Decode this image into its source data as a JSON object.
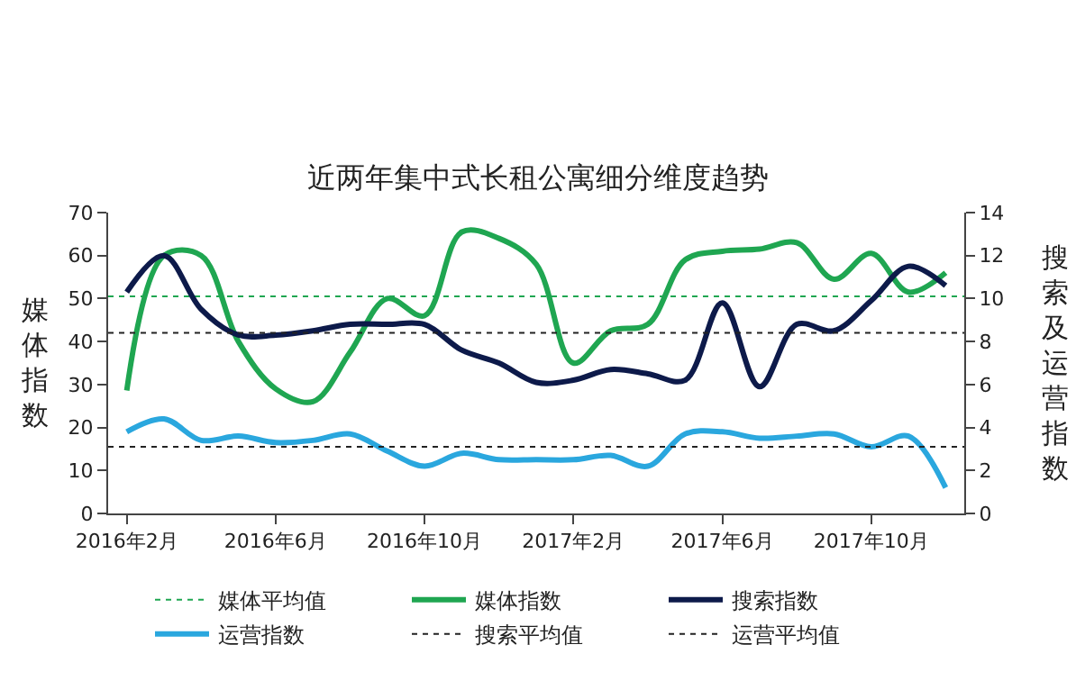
{
  "chart_data": {
    "type": "line",
    "title": "近两年集中式长租公寓细分维度趋势",
    "ylabel": "媒体指数",
    "y2label": "搜索及运营指数",
    "categories": [
      "2016年2月",
      null,
      null,
      null,
      "2016年6月",
      null,
      null,
      null,
      "2016年10月",
      null,
      null,
      null,
      "2017年2月",
      null,
      null,
      null,
      "2017年6月",
      null,
      null,
      null,
      "2017年10月",
      null,
      null
    ],
    "series": [
      {
        "name": "媒体指数",
        "color": "#1fa651",
        "values": [
          28.6,
          60,
          60,
          40,
          29,
          26,
          37.5,
          50,
          46,
          65.5,
          64,
          58,
          35,
          42.5,
          44,
          59,
          61,
          61.5,
          63,
          54.5,
          60.5,
          51.5,
          56
        ]
      },
      {
        "name": "搜索指数",
        "color": "#0d1a4a",
        "axis": "y2",
        "values": [
          10.3,
          12,
          9.5,
          8.3,
          8.3,
          8.5,
          8.8,
          8.8,
          8.8,
          7.6,
          7,
          6.1,
          6.2,
          6.7,
          6.5,
          6.2,
          9.8,
          5.9,
          8.8,
          8.5,
          9.9,
          11.5,
          10.6
        ]
      },
      {
        "name": "运营指数",
        "color": "#2aa7de",
        "axis": "y2",
        "values": [
          3.8,
          4.4,
          3.4,
          3.6,
          3.3,
          3.4,
          3.7,
          2.9,
          2.2,
          2.8,
          2.5,
          2.5,
          2.5,
          2.7,
          2.2,
          3.7,
          3.8,
          3.5,
          3.6,
          3.7,
          3.1,
          3.6,
          1.2
        ]
      }
    ],
    "ref_lines": [
      {
        "axis": "y",
        "value": 50.5,
        "label": "媒体平均值",
        "color": "#1fa651",
        "line_style": "dotted"
      },
      {
        "axis": "y2",
        "value": 8.4,
        "label": "搜索平均值",
        "color": "#222222",
        "line_style": "dotted"
      },
      {
        "axis": "y2",
        "value": 3.1,
        "label": "运营平均值",
        "color": "#222222",
        "line_style": "dotted"
      }
    ],
    "ylim": [
      0,
      70
    ],
    "yticks": [
      0,
      10,
      20,
      30,
      40,
      50,
      60,
      70
    ],
    "y2lim": [
      0,
      14
    ],
    "y2ticks": [
      0,
      2,
      4,
      6,
      8,
      10,
      12,
      14
    ],
    "legend": "bottom",
    "marker": "none",
    "line_style": "solid"
  }
}
